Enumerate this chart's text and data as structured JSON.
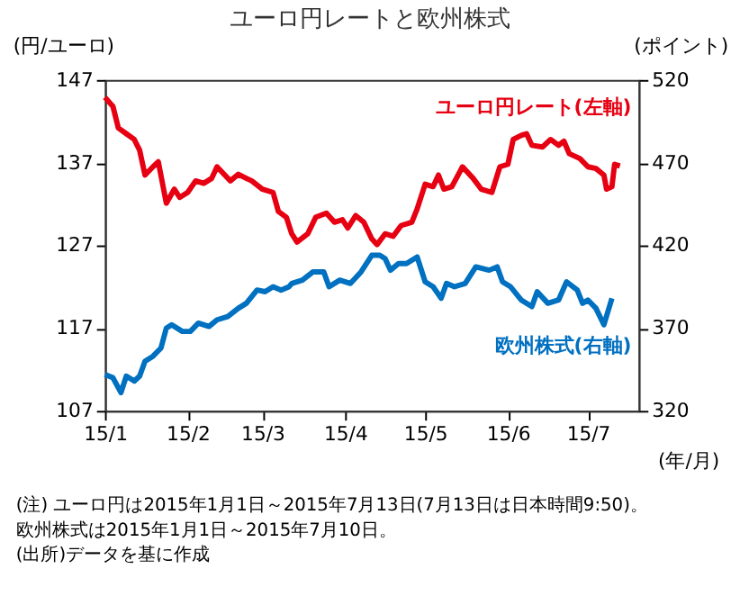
{
  "chart_data": {
    "type": "line",
    "title": "ユーロ円レートと欧州株式",
    "ylabel": "(円/ユーロ)",
    "y2label": "(ポイント)",
    "xlabel": "(年/月)",
    "xlim": [
      "2015-01-01",
      "2015-07-20"
    ],
    "xticks": [
      {
        "value": "2015-01-01",
        "label": "15/1"
      },
      {
        "value": "2015-02-01",
        "label": "15/2"
      },
      {
        "value": "2015-03-01",
        "label": "15/3"
      },
      {
        "value": "2015-04-01",
        "label": "15/4"
      },
      {
        "value": "2015-05-01",
        "label": "15/5"
      },
      {
        "value": "2015-06-01",
        "label": "15/6"
      },
      {
        "value": "2015-07-01",
        "label": "15/7"
      }
    ],
    "ylim": [
      107,
      147
    ],
    "yticks": [
      107,
      117,
      127,
      137,
      147
    ],
    "y2lim": [
      320,
      520
    ],
    "y2ticks": [
      320,
      370,
      420,
      470,
      520
    ],
    "grid": false,
    "marker": "none",
    "line_style": "solid",
    "series": [
      {
        "name": "ユーロ円レート(左軸)",
        "color": "#e60012",
        "x": [
          "2015-01-01",
          "2015-01-04",
          "2015-01-06",
          "2015-01-09",
          "2015-01-12",
          "2015-01-14",
          "2015-01-16",
          "2015-01-19",
          "2015-01-21",
          "2015-01-24",
          "2015-01-27",
          "2015-01-29",
          "2015-02-01",
          "2015-02-04",
          "2015-02-07",
          "2015-02-10",
          "2015-02-12",
          "2015-02-17",
          "2015-02-20",
          "2015-02-23",
          "2015-02-25",
          "2015-03-01",
          "2015-03-05",
          "2015-03-07",
          "2015-03-10",
          "2015-03-12",
          "2015-03-14",
          "2015-03-18",
          "2015-03-21",
          "2015-03-25",
          "2015-03-28",
          "2015-03-31",
          "2015-04-02",
          "2015-04-05",
          "2015-04-08",
          "2015-04-11",
          "2015-04-13",
          "2015-04-16",
          "2015-04-19",
          "2015-04-22",
          "2015-04-26",
          "2015-04-28",
          "2015-05-01",
          "2015-05-04",
          "2015-05-06",
          "2015-05-08",
          "2015-05-11",
          "2015-05-15",
          "2015-05-19",
          "2015-05-22",
          "2015-05-26",
          "2015-05-29",
          "2015-06-01",
          "2015-06-03",
          "2015-06-06",
          "2015-06-08",
          "2015-06-10",
          "2015-06-14",
          "2015-06-17",
          "2015-06-20",
          "2015-06-22",
          "2015-06-24",
          "2015-06-28",
          "2015-07-01",
          "2015-07-04",
          "2015-07-07",
          "2015-07-08",
          "2015-07-10",
          "2015-07-11",
          "2015-07-13"
        ],
        "values": [
          144.9,
          143.8,
          141.2,
          140.5,
          139.8,
          138.5,
          135.5,
          136.5,
          137.1,
          132.1,
          133.8,
          132.8,
          133.4,
          134.8,
          134.5,
          135.1,
          136.5,
          134.8,
          135.6,
          135.1,
          134.8,
          133.8,
          133.4,
          131.1,
          130.4,
          128.4,
          127.4,
          128.4,
          130.4,
          130.9,
          129.8,
          130.1,
          129.1,
          130.6,
          129.8,
          127.8,
          127.1,
          128.4,
          128.1,
          129.4,
          129.8,
          131.4,
          134.4,
          134.1,
          135.5,
          133.8,
          134.1,
          136.5,
          135.1,
          133.8,
          133.4,
          136.5,
          136.8,
          139.8,
          140.3,
          140.5,
          139.1,
          138.9,
          139.8,
          139.1,
          139.6,
          138.1,
          137.5,
          136.5,
          136.3,
          135.5,
          133.8,
          134.1,
          136.8,
          136.6
        ]
      },
      {
        "name": "欧州株式(右軸)",
        "color": "#0070c0",
        "axis": "y2",
        "x": [
          "2015-01-01",
          "2015-01-04",
          "2015-01-07",
          "2015-01-09",
          "2015-01-12",
          "2015-01-14",
          "2015-01-16",
          "2015-01-19",
          "2015-01-22",
          "2015-01-24",
          "2015-01-26",
          "2015-01-30",
          "2015-02-02",
          "2015-02-05",
          "2015-02-09",
          "2015-02-12",
          "2015-02-16",
          "2015-02-20",
          "2015-02-23",
          "2015-02-27",
          "2015-03-02",
          "2015-03-05",
          "2015-03-08",
          "2015-03-11",
          "2015-03-12",
          "2015-03-16",
          "2015-03-20",
          "2015-03-24",
          "2015-03-26",
          "2015-03-30",
          "2015-04-03",
          "2015-04-07",
          "2015-04-11",
          "2015-04-14",
          "2015-04-16",
          "2015-04-18",
          "2015-04-21",
          "2015-04-24",
          "2015-04-28",
          "2015-05-01",
          "2015-05-04",
          "2015-05-07",
          "2015-05-09",
          "2015-05-12",
          "2015-05-16",
          "2015-05-20",
          "2015-05-25",
          "2015-05-28",
          "2015-05-30",
          "2015-06-02",
          "2015-06-06",
          "2015-06-10",
          "2015-06-12",
          "2015-06-16",
          "2015-06-20",
          "2015-06-23",
          "2015-06-27",
          "2015-06-29",
          "2015-07-01",
          "2015-07-04",
          "2015-07-07",
          "2015-07-10"
        ],
        "values": [
          342,
          340,
          331,
          341,
          338,
          341,
          350,
          353,
          358,
          370,
          372,
          368,
          368,
          373,
          371,
          375,
          377,
          382,
          385,
          393,
          392,
          395,
          393,
          395,
          397,
          399,
          404,
          404,
          395,
          399,
          397,
          404,
          414,
          414,
          412,
          405,
          409,
          409,
          413,
          398,
          395,
          388,
          397,
          395,
          397,
          407,
          405,
          407,
          398,
          395,
          387,
          383,
          392,
          385,
          387,
          398,
          393,
          385,
          387,
          382,
          372,
          388
        ]
      }
    ],
    "annotations": [
      "(注) ユーロ円は2015年1月1日～2015年7月13日(7月13日は日本時間9:50)。",
      "　　 欧州株式は2015年1月1日～2015年7月10日。",
      "(出所)データを基に作成"
    ]
  }
}
